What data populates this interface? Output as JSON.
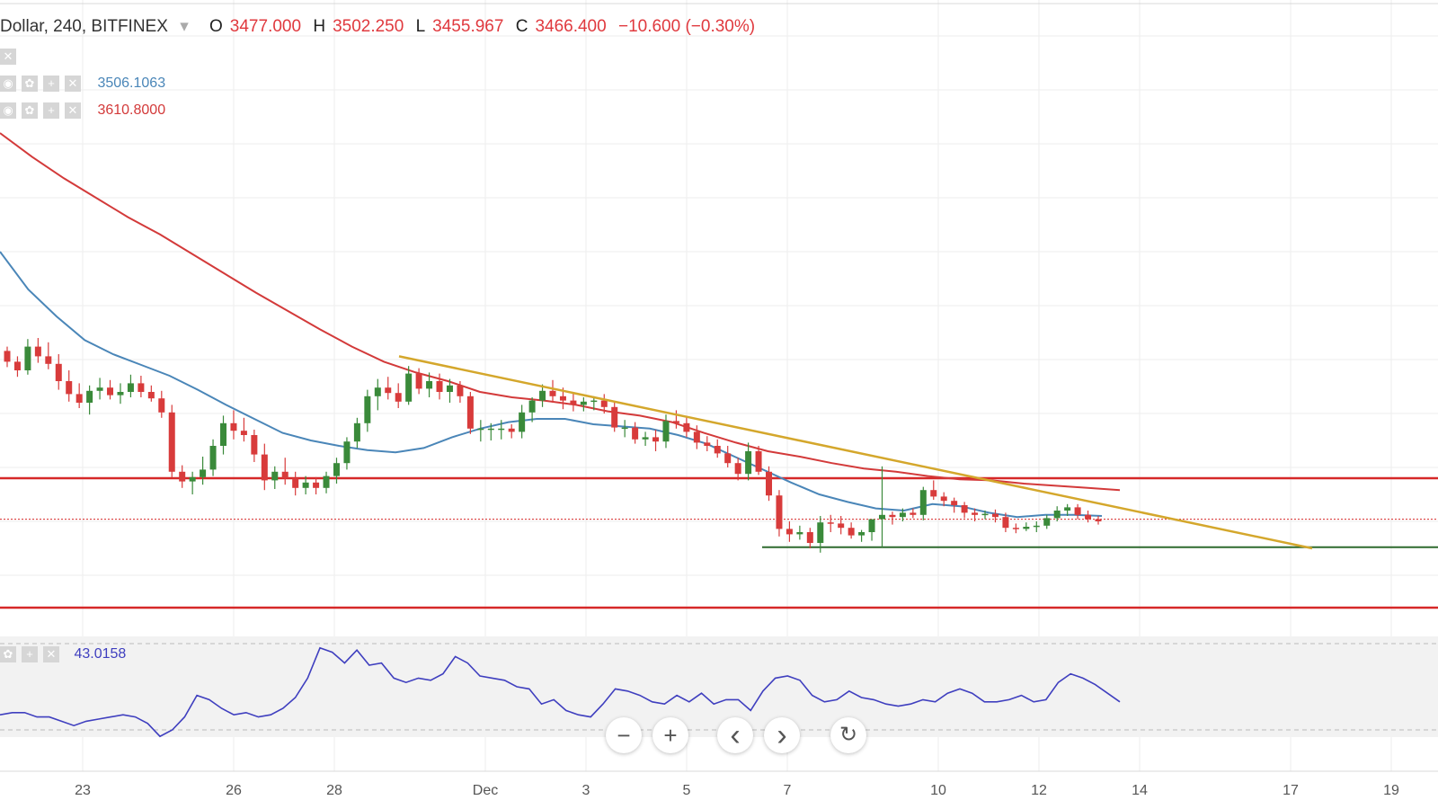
{
  "header": {
    "symbol": "Dollar, 240, BITFINEX",
    "dropdown_glyph": "▾",
    "open_label": "O",
    "open": "3477.000",
    "high_label": "H",
    "high": "3502.250",
    "low_label": "L",
    "low": "3455.967",
    "close_label": "C",
    "close": "3466.400",
    "change": "−10.600 (−0.30%)"
  },
  "indicators": {
    "ma_fast_value": "3506.1063",
    "ma_slow_value": "3610.8000",
    "rsi_value": "43.0158",
    "ma_fast_color": "#4a86b8",
    "ma_slow_color": "#d33a3a",
    "rsi_color": "#3f3fbf"
  },
  "icons": [
    "close-icon",
    "eye-icon",
    "gear-icon",
    "plus-icon"
  ],
  "controls": {
    "zoom_out": "−",
    "zoom_in": "+",
    "scroll_left": "‹",
    "scroll_right": "›",
    "reset": "↻"
  },
  "x_axis_labels": [
    "23",
    "26",
    "28",
    "Dec",
    "3",
    "5",
    "7",
    "10",
    "12",
    "14",
    "17",
    "19"
  ],
  "chart_data": {
    "type": "candlestick",
    "interval": "240",
    "exchange": "BITFINEX",
    "colors": {
      "up": "#3a8a3a",
      "down": "#d83b3b",
      "trendline": "#d4a72c",
      "support": "#d62828",
      "floor": "#2e6a2e",
      "last_price": "#d62828"
    },
    "candles_ohlc": [
      [
        3508,
        3512,
        3493,
        3498
      ],
      [
        3498,
        3503,
        3484,
        3490
      ],
      [
        3490,
        3519,
        3486,
        3512
      ],
      [
        3512,
        3520,
        3497,
        3503
      ],
      [
        3503,
        3516,
        3491,
        3496
      ],
      [
        3496,
        3505,
        3472,
        3480
      ],
      [
        3480,
        3490,
        3461,
        3468
      ],
      [
        3468,
        3478,
        3455,
        3460
      ],
      [
        3460,
        3476,
        3449,
        3471
      ],
      [
        3471,
        3483,
        3463,
        3474
      ],
      [
        3474,
        3481,
        3463,
        3467
      ],
      [
        3467,
        3478,
        3459,
        3470
      ],
      [
        3470,
        3486,
        3465,
        3478
      ],
      [
        3478,
        3485,
        3465,
        3470
      ],
      [
        3470,
        3476,
        3461,
        3464
      ],
      [
        3464,
        3471,
        3446,
        3451
      ],
      [
        3451,
        3458,
        3391,
        3396
      ],
      [
        3396,
        3402,
        3381,
        3387
      ],
      [
        3387,
        3396,
        3375,
        3391
      ],
      [
        3391,
        3410,
        3384,
        3398
      ],
      [
        3398,
        3426,
        3392,
        3420
      ],
      [
        3420,
        3448,
        3412,
        3441
      ],
      [
        3441,
        3453,
        3426,
        3434
      ],
      [
        3434,
        3446,
        3424,
        3430
      ],
      [
        3430,
        3435,
        3405,
        3412
      ],
      [
        3412,
        3422,
        3379,
        3388
      ],
      [
        3388,
        3401,
        3380,
        3396
      ],
      [
        3396,
        3409,
        3384,
        3390
      ],
      [
        3390,
        3396,
        3374,
        3381
      ],
      [
        3381,
        3392,
        3375,
        3386
      ],
      [
        3386,
        3391,
        3375,
        3381
      ],
      [
        3381,
        3396,
        3376,
        3392
      ],
      [
        3392,
        3409,
        3385,
        3404
      ],
      [
        3404,
        3428,
        3398,
        3424
      ],
      [
        3424,
        3446,
        3418,
        3441
      ],
      [
        3441,
        3472,
        3433,
        3466
      ],
      [
        3466,
        3482,
        3453,
        3474
      ],
      [
        3474,
        3484,
        3463,
        3469
      ],
      [
        3469,
        3478,
        3455,
        3461
      ],
      [
        3461,
        3494,
        3458,
        3487
      ],
      [
        3487,
        3492,
        3468,
        3473
      ],
      [
        3473,
        3488,
        3465,
        3480
      ],
      [
        3480,
        3487,
        3463,
        3470
      ],
      [
        3470,
        3482,
        3460,
        3476
      ],
      [
        3476,
        3480,
        3460,
        3466
      ],
      [
        3466,
        3470,
        3431,
        3436
      ],
      [
        3436,
        3444,
        3424,
        3436
      ],
      [
        3436,
        3441,
        3425,
        3436
      ],
      [
        3436,
        3444,
        3426,
        3436
      ],
      [
        3436,
        3440,
        3427,
        3433
      ],
      [
        3433,
        3458,
        3427,
        3451
      ],
      [
        3451,
        3465,
        3442,
        3462
      ],
      [
        3462,
        3477,
        3456,
        3471
      ],
      [
        3471,
        3481,
        3460,
        3466
      ],
      [
        3466,
        3474,
        3454,
        3462
      ],
      [
        3462,
        3470,
        3452,
        3458
      ],
      [
        3458,
        3465,
        3452,
        3461
      ],
      [
        3461,
        3466,
        3453,
        3462
      ],
      [
        3462,
        3468,
        3450,
        3456
      ],
      [
        3456,
        3461,
        3433,
        3437
      ],
      [
        3437,
        3444,
        3428,
        3437
      ],
      [
        3437,
        3442,
        3422,
        3426
      ],
      [
        3426,
        3433,
        3420,
        3428
      ],
      [
        3428,
        3435,
        3415,
        3424
      ],
      [
        3424,
        3449,
        3418,
        3443
      ],
      [
        3443,
        3453,
        3436,
        3441
      ],
      [
        3441,
        3447,
        3428,
        3433
      ],
      [
        3433,
        3439,
        3417,
        3423
      ],
      [
        3423,
        3429,
        3415,
        3420
      ],
      [
        3420,
        3426,
        3409,
        3413
      ],
      [
        3413,
        3420,
        3400,
        3404
      ],
      [
        3404,
        3409,
        3388,
        3394
      ],
      [
        3394,
        3423,
        3388,
        3415
      ],
      [
        3415,
        3420,
        3393,
        3396
      ],
      [
        3396,
        3401,
        3369,
        3374
      ],
      [
        3374,
        3379,
        3336,
        3343
      ],
      [
        3343,
        3350,
        3331,
        3338
      ],
      [
        3338,
        3346,
        3333,
        3340
      ],
      [
        3340,
        3344,
        3325,
        3330
      ],
      [
        3330,
        3355,
        3321,
        3349
      ],
      [
        3349,
        3356,
        3340,
        3348
      ],
      [
        3348,
        3355,
        3338,
        3344
      ],
      [
        3344,
        3349,
        3334,
        3337
      ],
      [
        3337,
        3342,
        3331,
        3340
      ],
      [
        3340,
        3348,
        3332,
        3352
      ],
      [
        3352,
        3401,
        3326,
        3356
      ],
      [
        3356,
        3359,
        3347,
        3354
      ],
      [
        3354,
        3362,
        3350,
        3358
      ],
      [
        3358,
        3362,
        3353,
        3356
      ],
      [
        3356,
        3382,
        3351,
        3379
      ],
      [
        3379,
        3388,
        3370,
        3373
      ],
      [
        3373,
        3377,
        3364,
        3369
      ],
      [
        3369,
        3372,
        3358,
        3365
      ],
      [
        3365,
        3368,
        3353,
        3358
      ],
      [
        3358,
        3362,
        3350,
        3356
      ],
      [
        3356,
        3360,
        3352,
        3357
      ],
      [
        3357,
        3361,
        3349,
        3354
      ],
      [
        3354,
        3358,
        3340,
        3344
      ],
      [
        3344,
        3348,
        3339,
        3343
      ],
      [
        3343,
        3349,
        3341,
        3345
      ],
      [
        3345,
        3350,
        3340,
        3346
      ],
      [
        3346,
        3356,
        3343,
        3353
      ],
      [
        3353,
        3364,
        3350,
        3360
      ],
      [
        3360,
        3366,
        3355,
        3363
      ],
      [
        3363,
        3366,
        3352,
        3356
      ],
      [
        3356,
        3360,
        3349,
        3352
      ],
      [
        3352,
        3355,
        3347,
        3350
      ]
    ],
    "ma_fast": [
      3600,
      3565,
      3540,
      3518,
      3505,
      3495,
      3485,
      3472,
      3458,
      3445,
      3432,
      3425,
      3420,
      3416,
      3414,
      3418,
      3428,
      3436,
      3442,
      3445,
      3445,
      3440,
      3438,
      3436,
      3430,
      3422,
      3410,
      3398,
      3386,
      3375,
      3368,
      3362,
      3360,
      3366,
      3364,
      3358,
      3354,
      3356,
      3356,
      3355
    ],
    "ma_slow": [
      3710,
      3688,
      3668,
      3650,
      3632,
      3616,
      3598,
      3580,
      3562,
      3545,
      3528,
      3512,
      3498,
      3488,
      3480,
      3470,
      3465,
      3462,
      3458,
      3452,
      3448,
      3442,
      3432,
      3423,
      3415,
      3410,
      3404,
      3399,
      3396,
      3392,
      3389,
      3388,
      3385,
      3383,
      3381,
      3379
    ],
    "trendline": [
      [
        0.0,
        3503
      ],
      [
        1.0,
        3325
      ]
    ],
    "support_level": 3390,
    "lower_level": 3270,
    "floor_level": 3326,
    "last_price": 3352,
    "rsi": [
      37,
      38,
      38,
      36,
      36,
      34,
      32,
      34,
      35,
      36,
      37,
      36,
      33,
      27,
      30,
      36,
      46,
      44,
      40,
      37,
      38,
      36,
      37,
      40,
      45,
      54,
      68,
      66,
      61,
      67,
      60,
      61,
      54,
      52,
      54,
      53,
      56,
      64,
      61,
      55,
      54,
      53,
      50,
      49,
      42,
      44,
      39,
      37,
      36,
      42,
      49,
      48,
      46,
      43,
      42,
      46,
      43,
      47,
      42,
      44,
      44,
      39,
      48,
      54,
      55,
      53,
      46,
      43,
      44,
      48,
      45,
      44,
      42,
      41,
      42,
      44,
      43,
      47,
      49,
      47,
      43,
      43,
      44,
      46,
      43,
      44,
      52,
      56,
      54,
      51,
      47,
      43
    ]
  }
}
